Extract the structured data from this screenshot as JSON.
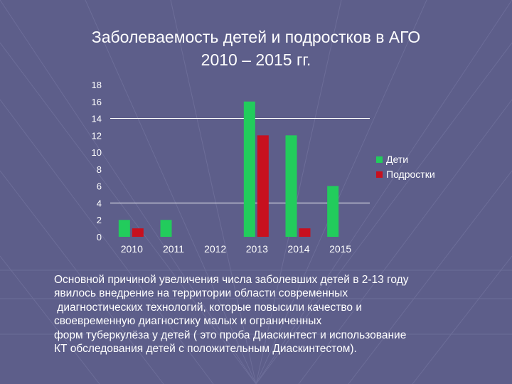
{
  "slide": {
    "title_line1": "Заболеваемость детей и подростков в АГО",
    "title_line2": "2010 – 2015 гг.",
    "body_lines": [
      "Основной причиной увеличения числа заболевших детей в 2-13 году",
      "явилось внедрение на территории области современных",
      " диагностических технологий, которые повысили качество и",
      "своевременную диагностику малых и ограниченных",
      "форм туберкулёза у детей ( это проба Диаскинтест и использование",
      "КТ обследования детей с положительным Диаскинтестом)."
    ]
  },
  "colors": {
    "background": "#5d5e8a",
    "grid_lines": "#7a7ba6",
    "children": "#22cc5c",
    "teens": "#c8101e",
    "text": "#ffffff"
  },
  "chart_data": {
    "type": "bar",
    "categories": [
      "2010",
      "2011",
      "2012",
      "2013",
      "2014",
      "2015"
    ],
    "series": [
      {
        "name": "Дети",
        "values": [
          2,
          2,
          0,
          16,
          12,
          6
        ],
        "color": "#22cc5c"
      },
      {
        "name": "Подростки",
        "values": [
          1,
          0,
          0,
          12,
          1,
          0
        ],
        "color": "#c8101e"
      }
    ],
    "yticks": [
      "0",
      "2",
      "4",
      "6",
      "8",
      "10",
      "12",
      "14",
      "16",
      "18"
    ],
    "ylim": [
      0,
      18
    ],
    "gridlines_y": [
      4,
      14
    ],
    "grid": true,
    "legend_position": "right"
  }
}
